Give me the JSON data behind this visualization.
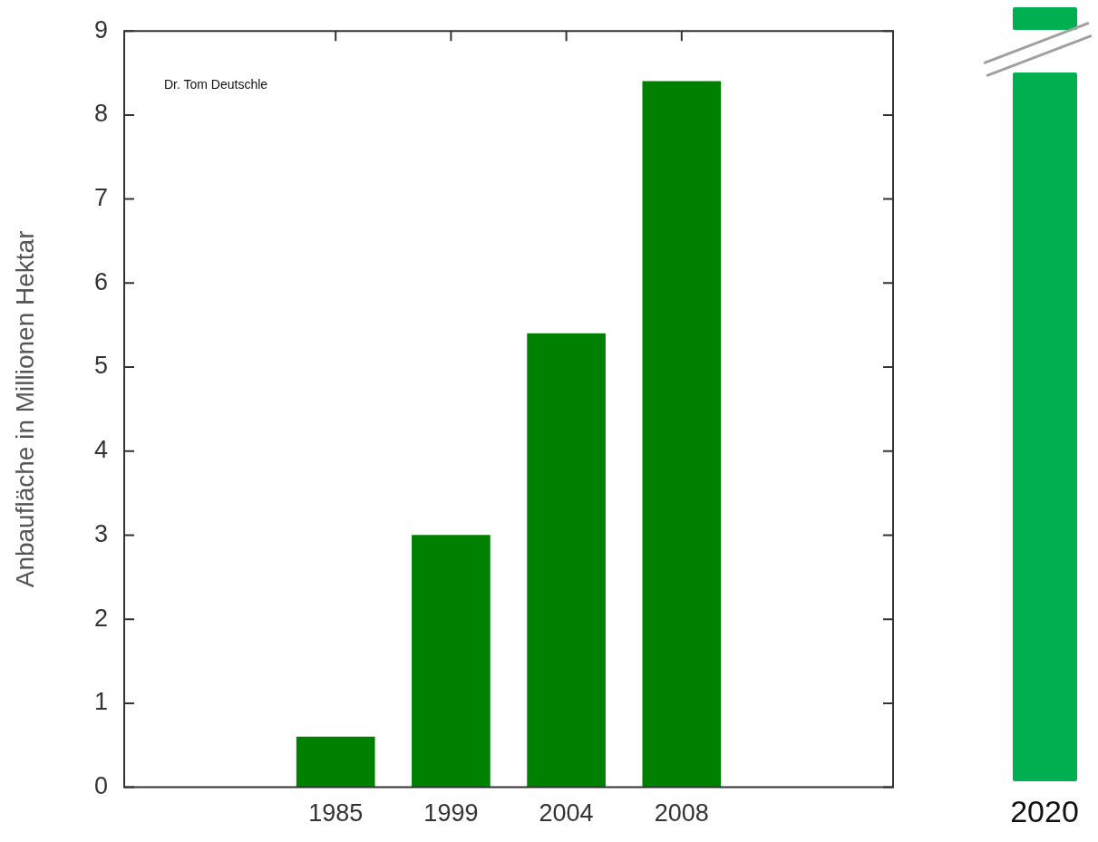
{
  "chart_data": {
    "type": "bar",
    "ylabel": "Anbaufläche in Millionen Hektar",
    "categories": [
      "1985",
      "1999",
      "2004",
      "2008"
    ],
    "values": [
      0.6,
      3.0,
      5.4,
      8.4
    ],
    "color": "#008000",
    "ylim": [
      0,
      9
    ],
    "yticks": [
      0,
      1,
      2,
      3,
      4,
      5,
      6,
      7,
      8,
      9
    ],
    "grid": false,
    "legend": false,
    "annotations": [
      "Dr. Tom Deutschle",
      "2020"
    ]
  }
}
